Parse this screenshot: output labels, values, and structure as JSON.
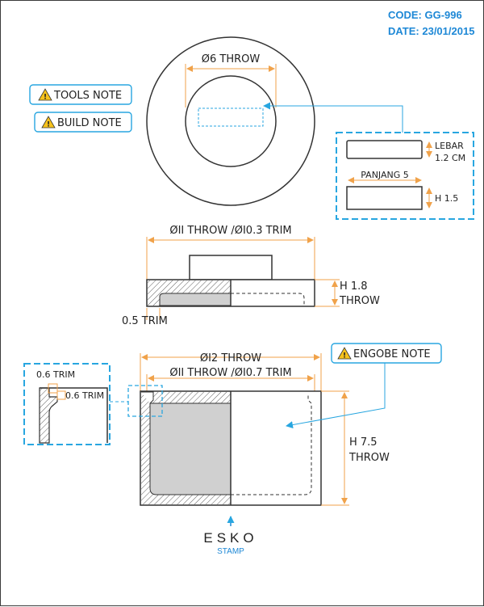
{
  "header": {
    "code": "CODE: GG-996",
    "date": "DATE: 23/01/2015"
  },
  "notes": {
    "tools": "TOOLS NOTE",
    "build": "BUILD NOTE",
    "engobe": "ENGOBE NOTE"
  },
  "top_view": {
    "inner_diameter": "Ø6 THROW",
    "detail": {
      "lebar_line1": "LEBAR",
      "lebar_line2": "1.2 CM",
      "panjang": "PANJANG 5",
      "height": "H 1.5"
    }
  },
  "lid_section": {
    "diameter": "ØII THROW /ØI0.3 TRIM",
    "height_line1": "H 1.8",
    "height_line2": "THROW",
    "trim": "0.5 TRIM"
  },
  "body_section": {
    "outer_diameter": "ØI2 THROW",
    "inner_diameter": "ØII THROW /ØI0.7 TRIM",
    "height_line1": "H 7.5",
    "height_line2": "THROW",
    "detail_trim_top": "0.6 TRIM",
    "detail_trim_side": "0.6 TRIM"
  },
  "stamp": {
    "label": "ESKO",
    "sub": "STAMP"
  },
  "colors": {
    "accent": "#1e88d6",
    "dimension": "#f0a24a",
    "detail_frame": "#28a6e0"
  }
}
